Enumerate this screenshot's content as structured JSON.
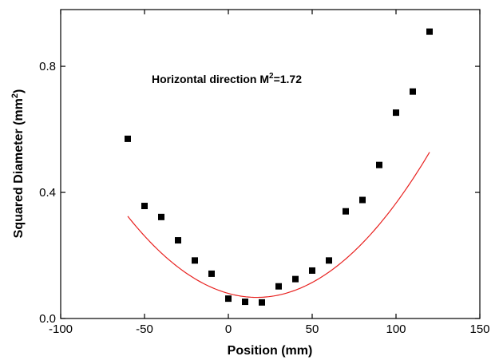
{
  "chart_data": {
    "type": "scatter",
    "xlabel": "Position (mm)",
    "ylabel_main": "Squared Diameter (mm",
    "ylabel_sup": "2",
    "ylabel_end": ")",
    "annotation": {
      "main": "Horizontal direction M",
      "sup": "2",
      "end": "=1.72"
    },
    "xlim": [
      -100,
      150
    ],
    "ylim": [
      0.0,
      0.98
    ],
    "xticks": [
      -100,
      -50,
      0,
      50,
      100,
      150
    ],
    "xtick_labels": [
      "-100",
      "-50",
      "0",
      "50",
      "100",
      "150"
    ],
    "yticks": [
      0.0,
      0.4,
      0.8
    ],
    "ytick_labels": [
      "0.0",
      "0.4",
      "0.8"
    ],
    "grid": false,
    "points": [
      {
        "x": -60,
        "y": 0.57
      },
      {
        "x": -50,
        "y": 0.357
      },
      {
        "x": -40,
        "y": 0.322
      },
      {
        "x": -30,
        "y": 0.248
      },
      {
        "x": -20,
        "y": 0.184
      },
      {
        "x": -10,
        "y": 0.142
      },
      {
        "x": 0,
        "y": 0.063
      },
      {
        "x": 10,
        "y": 0.053
      },
      {
        "x": 20,
        "y": 0.051
      },
      {
        "x": 30,
        "y": 0.102
      },
      {
        "x": 40,
        "y": 0.125
      },
      {
        "x": 50,
        "y": 0.152
      },
      {
        "x": 60,
        "y": 0.184
      },
      {
        "x": 70,
        "y": 0.34
      },
      {
        "x": 80,
        "y": 0.376
      },
      {
        "x": 90,
        "y": 0.487
      },
      {
        "x": 100,
        "y": 0.653
      },
      {
        "x": 110,
        "y": 0.72
      },
      {
        "x": 120,
        "y": 0.91
      }
    ],
    "fit": {
      "type": "quadratic",
      "a": 4.34e-05,
      "x0": 17,
      "c": 0.067,
      "x_range": [
        -60,
        120
      ]
    },
    "colors": {
      "points": "#000000",
      "fit": "#e8211f",
      "axes": "#000000"
    }
  }
}
